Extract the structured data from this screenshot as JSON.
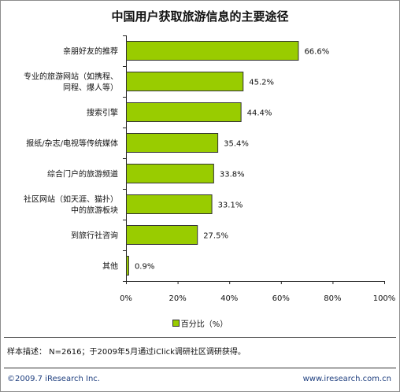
{
  "chart_data": {
    "type": "bar",
    "orientation": "horizontal",
    "title": "中国用户获取旅游信息的主要途径",
    "categories": [
      [
        "亲朋好友的推荐"
      ],
      [
        "专业的旅游网站（如携程、",
        "同程、爆人等）"
      ],
      [
        "搜索引擎"
      ],
      [
        "报纸/杂志/电视等传统媒体"
      ],
      [
        "综合门户的旅游频道"
      ],
      [
        "社区网站（如天涯、猫扑）",
        "中的旅游板块"
      ],
      [
        "到旅行社咨询"
      ],
      [
        "其他"
      ]
    ],
    "values": [
      66.6,
      45.2,
      44.4,
      35.4,
      33.8,
      33.1,
      27.5,
      0.9
    ],
    "value_labels": [
      "66.6%",
      "45.2%",
      "44.4%",
      "35.4%",
      "33.8%",
      "33.1%",
      "27.5%",
      "0.9%"
    ],
    "xlim": [
      0,
      100
    ],
    "x_ticks": [
      "0%",
      "20%",
      "40%",
      "60%",
      "80%",
      "100%"
    ],
    "grid": false,
    "legend_position": "bottom",
    "series": [
      {
        "name": "百分比（%）",
        "color": "#99cc00"
      }
    ]
  },
  "note": "样本描述： N=2616；于2009年5月通过iClick调研社区调研获得。",
  "footer": {
    "copyright": "©2009.7 iResearch Inc.",
    "website": "www.iresearch.com.cn"
  }
}
